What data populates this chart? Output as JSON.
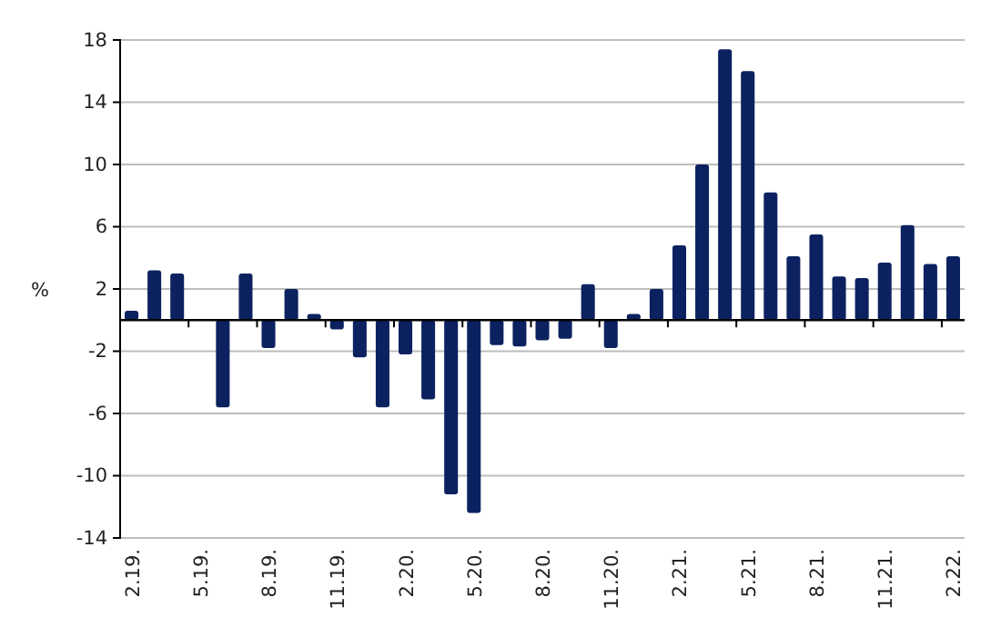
{
  "chart_data": {
    "type": "bar",
    "ylabel": "%",
    "categories": [
      "2.19.",
      null,
      null,
      "5.19.",
      null,
      null,
      "8.19.",
      null,
      null,
      "11.19.",
      null,
      null,
      "2.20.",
      null,
      null,
      "5.20.",
      null,
      null,
      "8.20.",
      null,
      null,
      "11.20.",
      null,
      null,
      "2.21.",
      null,
      null,
      "5.21.",
      null,
      null,
      "8.21.",
      null,
      null,
      "11.21.",
      null,
      null,
      "2.22."
    ],
    "values": [
      0.6,
      3.2,
      3.0,
      0,
      -5.6,
      3.0,
      -1.8,
      2.0,
      0.4,
      -0.6,
      -2.4,
      -5.6,
      -2.2,
      -5.1,
      -11.2,
      -12.4,
      -1.6,
      -1.7,
      -1.3,
      -1.2,
      2.3,
      -1.8,
      0.4,
      2.0,
      4.8,
      10.0,
      17.4,
      16.0,
      8.2,
      4.1,
      5.5,
      2.8,
      2.7,
      3.7,
      6.1,
      3.6,
      4.1
    ],
    "color": "#0c2260",
    "ylim": [
      -14,
      18
    ],
    "yticks": [
      -14,
      -10,
      -6,
      -2,
      2,
      6,
      10,
      14,
      18
    ],
    "grid": "y"
  }
}
